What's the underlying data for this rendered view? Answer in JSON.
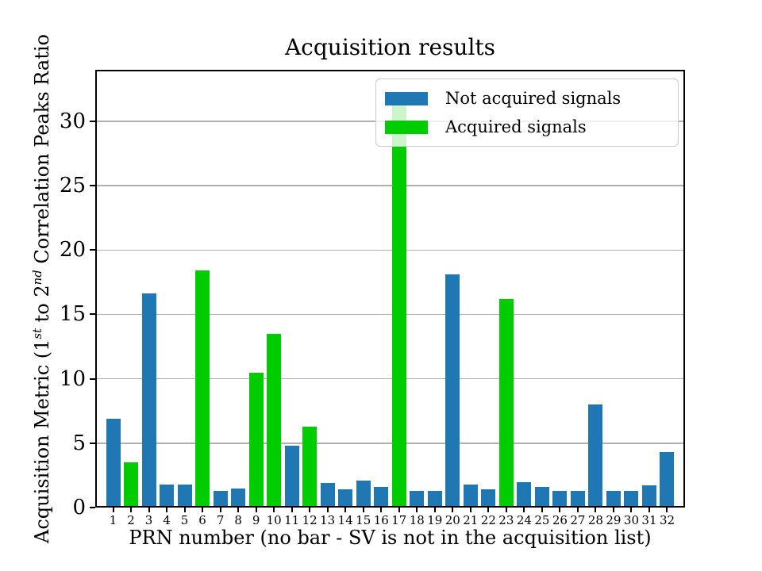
{
  "title": "Acquisition results",
  "axes": {
    "xlabel": "PRN number (no bar - SV is not in the acquisition list)",
    "ylabel_prefix": "Acquisition Metric (1",
    "ylabel_sup1": "st",
    "ylabel_mid": " to 2",
    "ylabel_sup2": "nd",
    "ylabel_suffix": " Correlation Peaks Ratio",
    "yticks": [
      0,
      5,
      10,
      15,
      20,
      25,
      30
    ]
  },
  "legend": {
    "items": [
      {
        "label": "Not acquired signals",
        "color": "#1f77b4"
      },
      {
        "label": "Acquired signals",
        "color": "#00cc00"
      }
    ]
  },
  "colors": {
    "not_acquired": "#1f77b4",
    "acquired": "#00cc00",
    "grid": "#b0b0b0",
    "spine": "#000000"
  },
  "chart_data": {
    "type": "bar",
    "title": "Acquisition results",
    "xlabel": "PRN number (no bar - SV is not in the acquisition list)",
    "ylabel": "Acquisition Metric (1st to 2nd Correlation Peaks Ratio",
    "categories": [
      1,
      2,
      3,
      4,
      5,
      6,
      7,
      8,
      9,
      10,
      11,
      12,
      13,
      14,
      15,
      16,
      17,
      18,
      19,
      20,
      21,
      22,
      23,
      24,
      25,
      26,
      27,
      28,
      29,
      30,
      31,
      32
    ],
    "series": [
      {
        "name": "Not acquired signals",
        "color": "#1f77b4",
        "values": [
          6.9,
          null,
          16.6,
          1.8,
          1.8,
          null,
          1.3,
          1.5,
          null,
          null,
          4.8,
          null,
          1.9,
          1.4,
          2.1,
          1.6,
          null,
          1.3,
          1.3,
          18.1,
          1.8,
          1.4,
          null,
          2.0,
          1.6,
          1.3,
          1.3,
          8.0,
          1.3,
          1.3,
          1.7,
          4.3
        ]
      },
      {
        "name": "Acquired signals",
        "color": "#00cc00",
        "values": [
          null,
          3.5,
          null,
          null,
          null,
          18.4,
          null,
          null,
          10.5,
          13.5,
          null,
          6.3,
          null,
          null,
          null,
          null,
          31.4,
          null,
          null,
          null,
          null,
          null,
          16.2,
          null,
          null,
          null,
          null,
          null,
          null,
          null,
          null,
          null
        ]
      }
    ],
    "ylim": [
      0,
      34
    ],
    "xlim": [
      0,
      33
    ],
    "grid": true,
    "legend_position": "upper right"
  }
}
